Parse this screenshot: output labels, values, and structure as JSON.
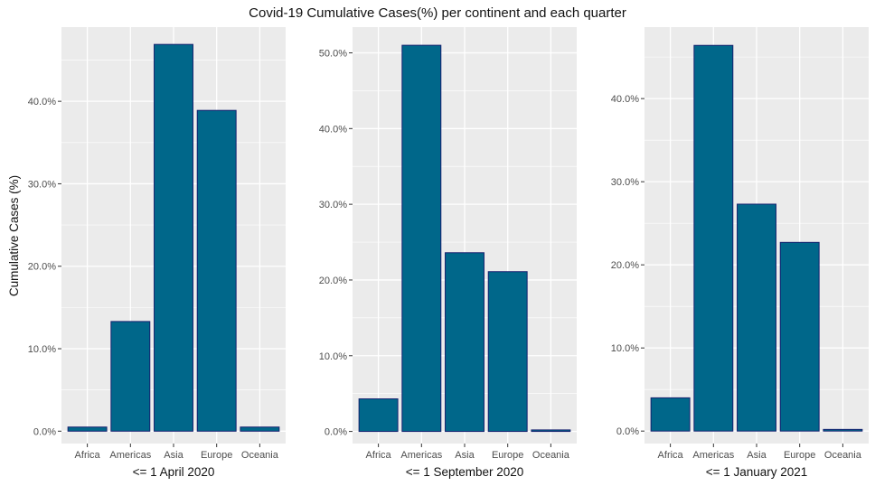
{
  "figure": {
    "title": "Covid-19 Cumulative Cases(%) per continent and each quarter",
    "ylabel": "Cumulative Cases (%)",
    "colors": {
      "panel_background": "#ebebeb",
      "grid": "#ffffff",
      "bar_fill": "#00678a",
      "bar_outline": "#14206e",
      "tick_label": "#4d4d4d",
      "axis_title": "#111111"
    }
  },
  "chart_data": [
    {
      "type": "bar",
      "title": "",
      "xlabel": "<= 1 April 2020",
      "ylabel": "Cumulative Cases (%)",
      "categories": [
        "Africa",
        "Americas",
        "Asia",
        "Europe",
        "Oceania"
      ],
      "values": [
        0.5,
        13.3,
        46.9,
        38.9,
        0.5
      ],
      "ylim": [
        -1.5,
        49
      ],
      "yticks": [
        0,
        10,
        20,
        30,
        40
      ],
      "ytick_labels": [
        "0.0%",
        "10.0%",
        "20.0%",
        "30.0%",
        "40.0%"
      ],
      "grid": true,
      "legend": "none"
    },
    {
      "type": "bar",
      "title": "",
      "xlabel": "<= 1 September 2020",
      "ylabel": "",
      "categories": [
        "Africa",
        "Americas",
        "Asia",
        "Europe",
        "Oceania"
      ],
      "values": [
        4.3,
        51.0,
        23.6,
        21.1,
        0.2
      ],
      "ylim": [
        -1.6,
        53.4
      ],
      "yticks": [
        0,
        10,
        20,
        30,
        40,
        50
      ],
      "ytick_labels": [
        "0.0%",
        "10.0%",
        "20.0%",
        "30.0%",
        "40.0%",
        "50.0%"
      ],
      "grid": true,
      "legend": "none"
    },
    {
      "type": "bar",
      "title": "",
      "xlabel": "<= 1 January 2021",
      "ylabel": "",
      "categories": [
        "Africa",
        "Americas",
        "Asia",
        "Europe",
        "Oceania"
      ],
      "values": [
        4.0,
        46.4,
        27.3,
        22.7,
        0.2
      ],
      "ylim": [
        -1.5,
        48.6
      ],
      "yticks": [
        0,
        10,
        20,
        30,
        40
      ],
      "ytick_labels": [
        "0.0%",
        "10.0%",
        "20.0%",
        "30.0%",
        "40.0%"
      ],
      "grid": true,
      "legend": "none"
    }
  ]
}
